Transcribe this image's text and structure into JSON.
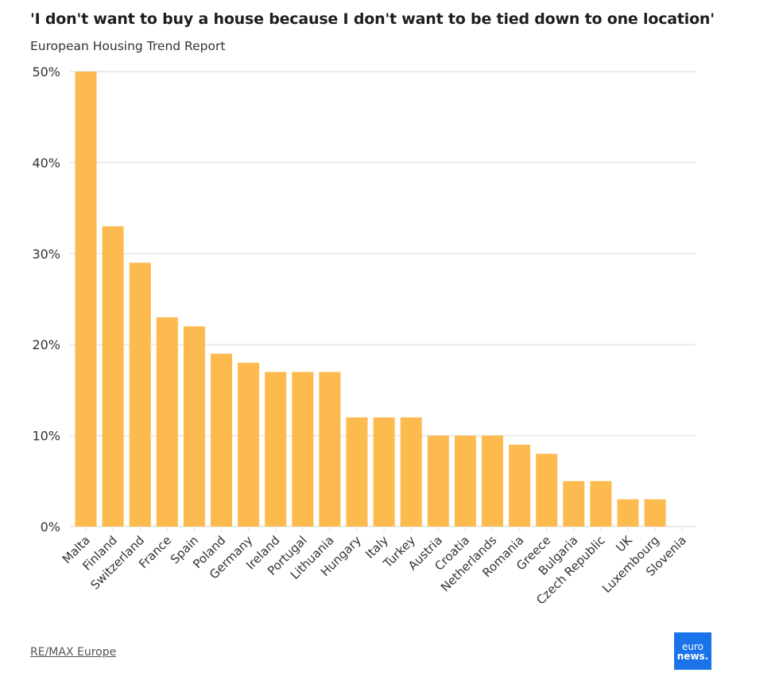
{
  "header": {
    "title": "'I don't want to buy a house because I don't want to be tied down to one location'",
    "subtitle": "European Housing Trend Report"
  },
  "footer": {
    "source_label": "RE/MAX Europe",
    "logo_line1": "euro",
    "logo_line2": "news."
  },
  "colors": {
    "bar": "#FDBA4E",
    "grid": "#EBEBEB",
    "logo_bg": "#1A73E8"
  },
  "chart_data": {
    "type": "bar",
    "title": "'I don't want to buy a house because I don't want to be tied down to one location'",
    "subtitle": "European Housing Trend Report",
    "xlabel": "",
    "ylabel": "",
    "ylim": [
      0,
      50
    ],
    "yticks": [
      0,
      10,
      20,
      30,
      40,
      50
    ],
    "ytick_labels": [
      "0%",
      "10%",
      "20%",
      "30%",
      "40%",
      "50%"
    ],
    "grid": true,
    "legend": "none",
    "categories": [
      "Malta",
      "Finland",
      "Switzerland",
      "France",
      "Spain",
      "Poland",
      "Germany",
      "Ireland",
      "Portugal",
      "Lithuania",
      "Hungary",
      "Italy",
      "Turkey",
      "Austria",
      "Croatia",
      "Netherlands",
      "Romania",
      "Greece",
      "Bulgaria",
      "Czech Republic",
      "UK",
      "Luxembourg",
      "Slovenia"
    ],
    "values": [
      50,
      33,
      29,
      23,
      22,
      19,
      18,
      17,
      17,
      17,
      12,
      12,
      12,
      10,
      10,
      10,
      9,
      8,
      5,
      5,
      3,
      3,
      0
    ],
    "unit": "%",
    "source": "RE/MAX Europe"
  }
}
